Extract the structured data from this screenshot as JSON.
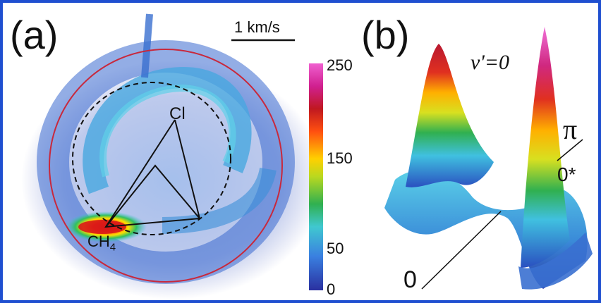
{
  "panel_a": {
    "label": "(a)",
    "scale_bar_text": "1 km/s",
    "cl_label": "Cl",
    "ch4_label": "CH",
    "ch4_subscript": "4"
  },
  "panel_b": {
    "label": "(b)",
    "v_label": "ν'=0",
    "pi_label": "π",
    "zero_star_label": "0*",
    "zero_label": "0"
  },
  "colorbar": {
    "ticks": [
      "250",
      "150",
      "50",
      "0"
    ]
  },
  "colors": {
    "frame": "#1f4fd0",
    "red_circle": "#c8283c",
    "dashed_circle": "#111111"
  }
}
